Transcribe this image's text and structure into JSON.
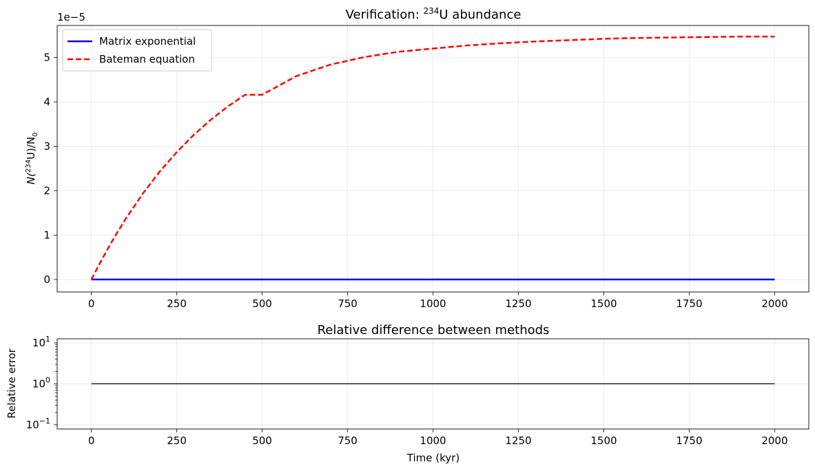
{
  "chart_data": [
    {
      "type": "line",
      "title_prefix": "Verification: ",
      "title_sup": "234",
      "title_suffix": "U abundance",
      "ylabel_prefix": "N(",
      "ylabel_sup": "234",
      "ylabel_mid": "U)/N",
      "ylabel_sub": "0",
      "y_multiplier": "1e−5",
      "xlim": [
        -100,
        2100
      ],
      "ylim": [
        -0.28,
        5.72
      ],
      "xticks": [
        0,
        250,
        500,
        750,
        1000,
        1250,
        1500,
        1750,
        2000
      ],
      "yticks": [
        0,
        1,
        2,
        3,
        4,
        5
      ],
      "grid": true,
      "legend_position": "upper-left",
      "series": [
        {
          "name": "Matrix exponential",
          "color": "#0000ff",
          "style": "solid",
          "x": [
            0,
            250,
            500,
            750,
            1000,
            1250,
            1500,
            1750,
            2000
          ],
          "y": [
            0,
            0,
            0,
            0,
            0,
            0,
            0,
            0,
            0
          ]
        },
        {
          "name": "Bateman equation",
          "color": "#ff0000",
          "style": "dashed",
          "x": [
            0,
            25,
            50,
            75,
            100,
            150,
            200,
            250,
            300,
            350,
            400,
            450,
            500,
            600,
            700,
            800,
            900,
            1000,
            1100,
            1200,
            1300,
            1400,
            1500,
            1600,
            1700,
            1800,
            1900,
            2000
          ],
          "y": [
            0,
            0.37,
            0.72,
            1.05,
            1.36,
            1.93,
            2.43,
            2.87,
            3.26,
            3.6,
            3.9,
            4.16,
            4.16,
            4.58,
            4.84,
            5.01,
            5.13,
            5.2,
            5.27,
            5.32,
            5.36,
            5.39,
            5.42,
            5.44,
            5.45,
            5.46,
            5.47,
            5.47
          ]
        }
      ]
    },
    {
      "type": "line",
      "title": "Relative difference between methods",
      "xlabel": "Time (kyr)",
      "ylabel": "Relative error",
      "yscale": "log",
      "xlim": [
        -100,
        2100
      ],
      "ylim": [
        0.079,
        12.6
      ],
      "xticks": [
        0,
        250,
        500,
        750,
        1000,
        1250,
        1500,
        1750,
        2000
      ],
      "yticks": [
        0.1,
        1,
        10
      ],
      "ytick_labels": [
        {
          "base": "10",
          "exp": "−1"
        },
        {
          "base": "10",
          "exp": "0"
        },
        {
          "base": "10",
          "exp": "1"
        }
      ],
      "grid": true,
      "series": [
        {
          "color": "#000000",
          "style": "solid",
          "x": [
            0,
            2000
          ],
          "y": [
            1,
            1
          ]
        }
      ]
    }
  ]
}
